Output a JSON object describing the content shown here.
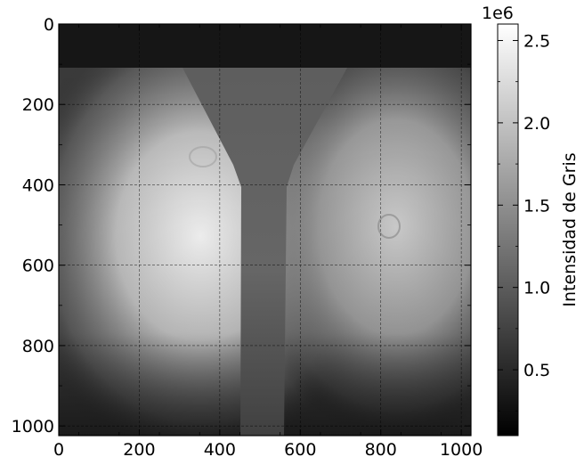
{
  "chart_data": {
    "type": "heatmap",
    "title": "",
    "xlabel": "",
    "ylabel": "",
    "xlim": [
      0,
      1024
    ],
    "ylim": [
      1024,
      0
    ],
    "grid": true,
    "colormap": "gray",
    "x_ticks": [
      "0",
      "200",
      "400",
      "600",
      "800",
      "1000"
    ],
    "y_ticks": [
      "0",
      "200",
      "400",
      "600",
      "800",
      "1000"
    ],
    "x_tick_values": [
      0,
      200,
      400,
      600,
      800,
      1000
    ],
    "y_tick_values": [
      0,
      200,
      400,
      600,
      800,
      1000
    ],
    "colorbar": {
      "label": "Intensidad de Gris",
      "offset_text": "1e6",
      "range": [
        0.1,
        2.6
      ],
      "ticks": [
        "0.5",
        "1.0",
        "1.5",
        "2.0",
        "2.5"
      ],
      "tick_values": [
        0.5,
        1.0,
        1.5,
        2.0,
        2.5
      ]
    },
    "image_description_values": {
      "background_top_band_intensity": 0.5,
      "left_bright_region_peak_intensity": 2.3,
      "right_bright_region_peak_intensity": 1.7,
      "central_channel_intensity": 0.9
    }
  }
}
